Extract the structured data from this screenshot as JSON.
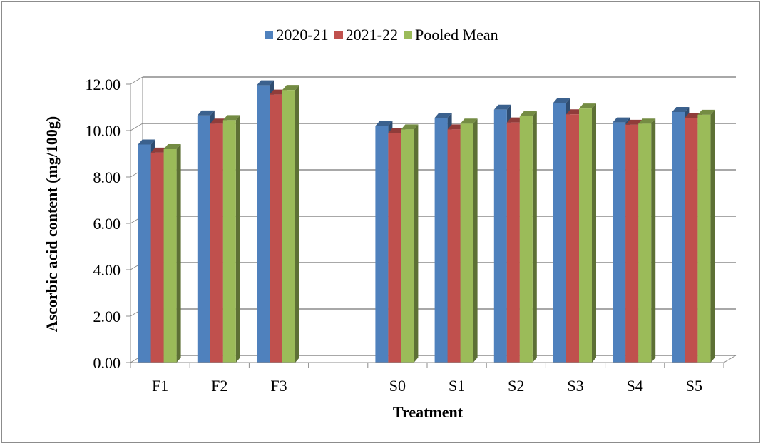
{
  "chart_data": {
    "type": "bar",
    "categories": [
      "F1",
      "F2",
      "F3",
      "",
      "S0",
      "S1",
      "S2",
      "S3",
      "S4",
      "S5"
    ],
    "series": [
      {
        "name": "2020-21",
        "color": "#4f81bd",
        "values": [
          9.4,
          10.65,
          11.95,
          null,
          10.2,
          10.55,
          10.9,
          11.2,
          10.35,
          10.8
        ]
      },
      {
        "name": "2021-22",
        "color": "#c0504d",
        "values": [
          9.05,
          10.3,
          11.55,
          null,
          9.9,
          10.05,
          10.35,
          10.7,
          10.25,
          10.55
        ]
      },
      {
        "name": "Pooled Mean",
        "color": "#9bbb59",
        "values": [
          9.2,
          10.45,
          11.75,
          null,
          10.05,
          10.3,
          10.62,
          10.95,
          10.3,
          10.68
        ]
      }
    ],
    "xlabel": "Treatment",
    "ylabel": "Ascorbic acid content (mg/100g)",
    "ylim": [
      0,
      12
    ],
    "yticks": [
      "0.00",
      "2.00",
      "4.00",
      "6.00",
      "8.00",
      "10.00",
      "12.00"
    ],
    "grid": true,
    "legend_position": "top",
    "style": "3d-clustered-column"
  }
}
